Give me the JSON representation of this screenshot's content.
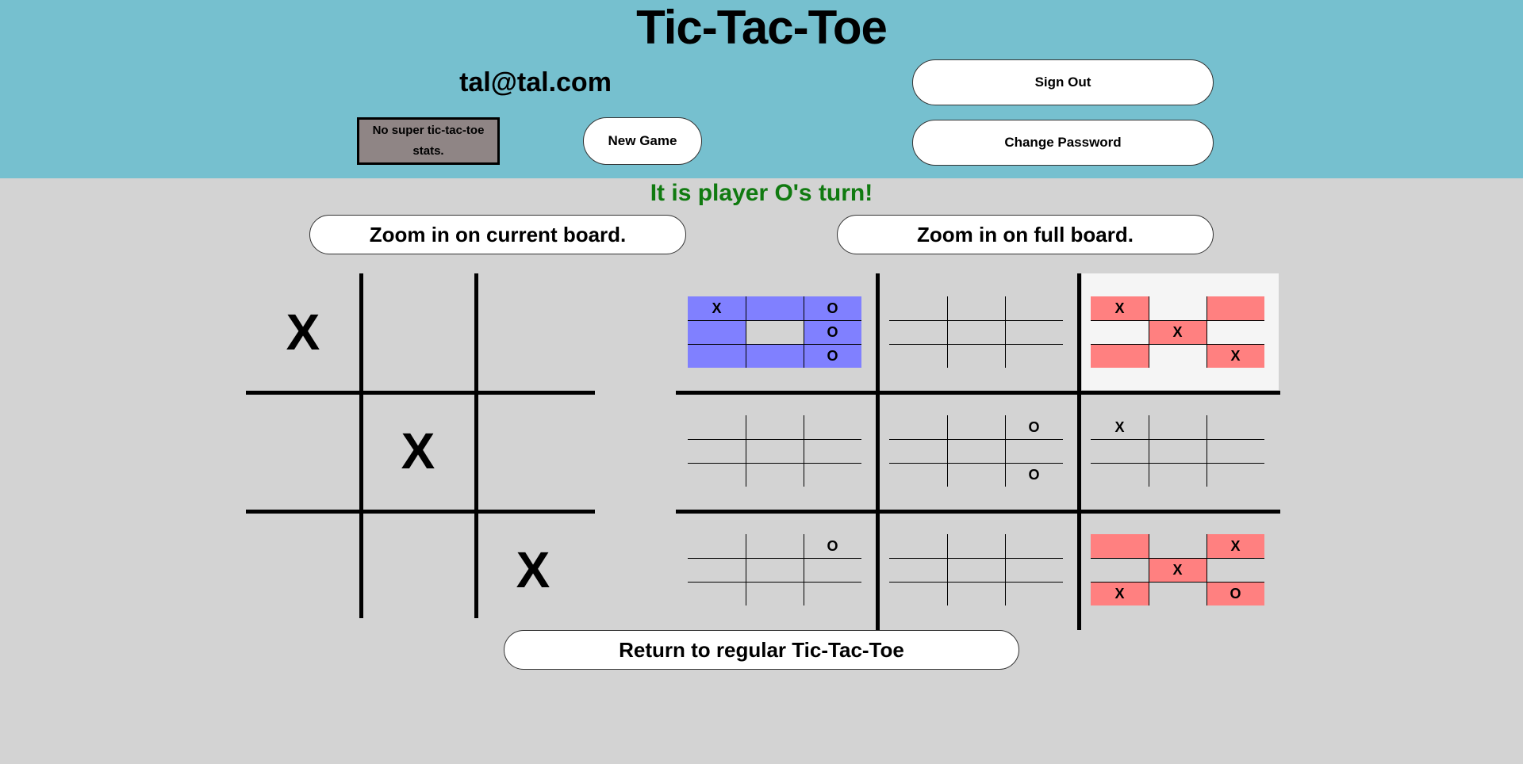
{
  "header": {
    "title": "Tic-Tac-Toe",
    "email": "tal@tal.com",
    "stats": "No super tic-tac-toe stats.",
    "new_game": "New Game",
    "sign_out": "Sign Out",
    "change_password": "Change Password"
  },
  "status": {
    "turn": "It is player O's turn!"
  },
  "zoom": {
    "current": "Zoom in on current board.",
    "full": "Zoom in on full board."
  },
  "footer": {
    "return": "Return to regular Tic-Tac-Toe"
  },
  "current_board": {
    "cells": [
      "X",
      "",
      "",
      "",
      "X",
      "",
      "",
      "",
      "X"
    ]
  },
  "super_board": {
    "boards": [
      {
        "winner": "O",
        "highlight": "",
        "cells": [
          "X",
          "",
          "O",
          "",
          "",
          "O",
          "",
          "",
          "O"
        ]
      },
      {
        "winner": "",
        "highlight": "",
        "cells": [
          "",
          "",
          "",
          "",
          "",
          "",
          "",
          "",
          ""
        ]
      },
      {
        "winner": "X",
        "highlight": "active",
        "cells": [
          "X",
          "",
          "",
          "",
          "X",
          "",
          "",
          "",
          "X"
        ]
      },
      {
        "winner": "",
        "highlight": "",
        "cells": [
          "",
          "",
          "",
          "",
          "",
          "",
          "",
          "",
          ""
        ]
      },
      {
        "winner": "",
        "highlight": "",
        "cells": [
          "",
          "",
          "O",
          "",
          "",
          "",
          "",
          "",
          "O"
        ]
      },
      {
        "winner": "",
        "highlight": "",
        "cells": [
          "X",
          "",
          "",
          "",
          "",
          "",
          "",
          "",
          ""
        ]
      },
      {
        "winner": "",
        "highlight": "",
        "cells": [
          "",
          "",
          "O",
          "",
          "",
          "",
          "",
          "",
          ""
        ]
      },
      {
        "winner": "",
        "highlight": "",
        "cells": [
          "",
          "",
          "",
          "",
          "",
          "",
          "",
          "",
          ""
        ]
      },
      {
        "winner": "X",
        "highlight": "",
        "cells": [
          "",
          "",
          "X",
          "",
          "X",
          "",
          "X",
          "",
          "O"
        ]
      }
    ]
  },
  "colors": {
    "header_bg": "#76c0cf",
    "page_bg": "#d3d3d3",
    "turn_text": "#107a10",
    "win_x_fill": "#ff8080",
    "win_o_fill": "#8080ff",
    "active_board_bg": "#f5f5f5",
    "stats_bg": "#8f8585"
  }
}
